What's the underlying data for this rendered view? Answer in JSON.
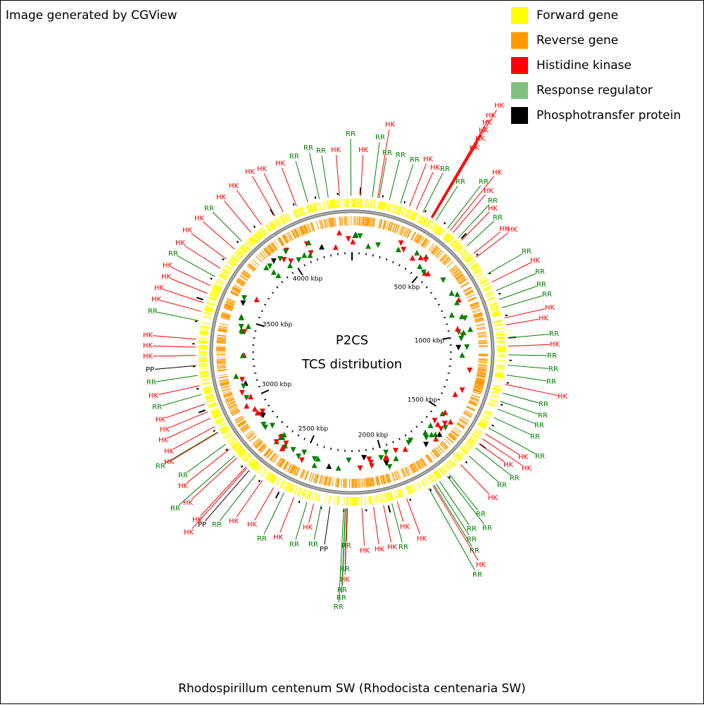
{
  "header": {
    "title": "Image generated by CGView"
  },
  "legend": [
    {
      "label": "Forward gene",
      "color": "#ffff00"
    },
    {
      "label": "Reverse gene",
      "color": "#ff9900"
    },
    {
      "label": "Histidine kinase",
      "color": "#ff0000"
    },
    {
      "label": "Response regulator",
      "color": "#80c080"
    },
    {
      "label": "Phosphotransfer protein",
      "color": "#000000"
    }
  ],
  "center": {
    "title": "P2CS",
    "subtitle": "TCS distribution"
  },
  "ruler": [
    "500 kbp",
    "1000 kbp",
    "1500 kbp",
    "2000 kbp",
    "2500 kbp",
    "3000 kbp",
    "3500 kbp",
    "4000 kbp"
  ],
  "features": [
    {
      "label": "RR",
      "color": "#008000"
    },
    {
      "label": "HK",
      "color": "#ff0000"
    },
    {
      "label": "RR",
      "color": "#008000"
    },
    {
      "label": "RR",
      "color": "#008000"
    },
    {
      "label": "HK",
      "color": "#ff0000"
    },
    {
      "label": "RR",
      "color": "#008000"
    },
    {
      "label": "RR",
      "color": "#008000"
    },
    {
      "label": "HK",
      "color": "#ff0000"
    },
    {
      "label": "HK",
      "color": "#ff0000"
    },
    {
      "label": "HK",
      "color": "#ff0000"
    },
    {
      "label": "HK",
      "color": "#ff0000"
    },
    {
      "label": "HK",
      "color": "#ff0000"
    },
    {
      "label": "HK",
      "color": "#ff0000"
    },
    {
      "label": "HK",
      "color": "#ff0000"
    },
    {
      "label": "HK",
      "color": "#ff0000"
    },
    {
      "label": "RR",
      "color": "#008000"
    },
    {
      "label": "RR",
      "color": "#008000"
    },
    {
      "label": "HK",
      "color": "#ff0000"
    },
    {
      "label": "RR",
      "color": "#008000"
    },
    {
      "label": "HK",
      "color": "#ff0000"
    },
    {
      "label": "RR",
      "color": "#008000"
    },
    {
      "label": "HK",
      "color": "#ff0000"
    },
    {
      "label": "RR",
      "color": "#008000"
    },
    {
      "label": "HK",
      "color": "#ff0000"
    },
    {
      "label": "HK",
      "color": "#ff0000"
    },
    {
      "label": "RR",
      "color": "#008000"
    },
    {
      "label": "HK",
      "color": "#ff0000"
    },
    {
      "label": "RR",
      "color": "#008000"
    },
    {
      "label": "RR",
      "color": "#008000"
    },
    {
      "label": "RR",
      "color": "#008000"
    },
    {
      "label": "HK",
      "color": "#ff0000"
    },
    {
      "label": "HK",
      "color": "#ff0000"
    },
    {
      "label": "RR",
      "color": "#008000"
    },
    {
      "label": "HK",
      "color": "#ff0000"
    },
    {
      "label": "RR",
      "color": "#008000"
    },
    {
      "label": "RR",
      "color": "#008000"
    },
    {
      "label": "RR",
      "color": "#008000"
    },
    {
      "label": "HK",
      "color": "#ff0000"
    },
    {
      "label": "RR",
      "color": "#008000"
    },
    {
      "label": "RR",
      "color": "#008000"
    },
    {
      "label": "RR",
      "color": "#008000"
    },
    {
      "label": "RR",
      "color": "#008000"
    },
    {
      "label": "HK",
      "color": "#ff0000"
    },
    {
      "label": "RR",
      "color": "#008000"
    },
    {
      "label": "HK",
      "color": "#ff0000"
    },
    {
      "label": "HK",
      "color": "#ff0000"
    },
    {
      "label": "RR",
      "color": "#008000"
    },
    {
      "label": "RR",
      "color": "#008000"
    },
    {
      "label": "HK",
      "color": "#ff0000"
    },
    {
      "label": "RR",
      "color": "#008000"
    },
    {
      "label": "RR",
      "color": "#008000"
    },
    {
      "label": "RR",
      "color": "#008000"
    },
    {
      "label": "RR",
      "color": "#008000"
    },
    {
      "label": "RR",
      "color": "#008000"
    },
    {
      "label": "HK",
      "color": "#ff0000"
    },
    {
      "label": "RR",
      "color": "#008000"
    },
    {
      "label": "HK",
      "color": "#ff0000"
    },
    {
      "label": "RR",
      "color": "#008000"
    },
    {
      "label": "HK",
      "color": "#ff0000"
    },
    {
      "label": "HK",
      "color": "#ff0000"
    },
    {
      "label": "HK",
      "color": "#ff0000"
    },
    {
      "label": "HK",
      "color": "#ff0000"
    },
    {
      "label": "RR",
      "color": "#008000"
    },
    {
      "label": "RR",
      "color": "#008000"
    },
    {
      "label": "HK",
      "color": "#ff0000"
    },
    {
      "label": "RR",
      "color": "#008000"
    },
    {
      "label": "RR",
      "color": "#008000"
    },
    {
      "label": "RR",
      "color": "#008000"
    },
    {
      "label": "PP",
      "color": "#000000"
    },
    {
      "label": "RR",
      "color": "#008000"
    },
    {
      "label": "RR",
      "color": "#008000"
    },
    {
      "label": "HK",
      "color": "#ff0000"
    },
    {
      "label": "HK",
      "color": "#ff0000"
    },
    {
      "label": "RR",
      "color": "#008000"
    },
    {
      "label": "HK",
      "color": "#ff0000"
    },
    {
      "label": "HK",
      "color": "#ff0000"
    },
    {
      "label": "RR",
      "color": "#008000"
    },
    {
      "label": "PP",
      "color": "#000000"
    },
    {
      "label": "HK",
      "color": "#ff0000"
    },
    {
      "label": "HK",
      "color": "#ff0000"
    },
    {
      "label": "RR",
      "color": "#008000"
    },
    {
      "label": "HK",
      "color": "#ff0000"
    },
    {
      "label": "HK",
      "color": "#ff0000"
    },
    {
      "label": "RR",
      "color": "#008000"
    },
    {
      "label": "RR",
      "color": "#008000"
    },
    {
      "label": "HK",
      "color": "#ff0000"
    },
    {
      "label": "HK",
      "color": "#ff0000"
    },
    {
      "label": "HK",
      "color": "#ff0000"
    },
    {
      "label": "HK",
      "color": "#ff0000"
    },
    {
      "label": "HK",
      "color": "#ff0000"
    },
    {
      "label": "RR",
      "color": "#008000"
    },
    {
      "label": "HK",
      "color": "#ff0000"
    },
    {
      "label": "RR",
      "color": "#008000"
    },
    {
      "label": "PP",
      "color": "#000000"
    },
    {
      "label": "HK",
      "color": "#ff0000"
    },
    {
      "label": "HK",
      "color": "#ff0000"
    },
    {
      "label": "HK",
      "color": "#ff0000"
    },
    {
      "label": "RR",
      "color": "#008000"
    },
    {
      "label": "HK",
      "color": "#ff0000"
    },
    {
      "label": "HK",
      "color": "#ff0000"
    },
    {
      "label": "HK",
      "color": "#ff0000"
    },
    {
      "label": "HK",
      "color": "#ff0000"
    },
    {
      "label": "RR",
      "color": "#008000"
    },
    {
      "label": "HK",
      "color": "#ff0000"
    },
    {
      "label": "HK",
      "color": "#ff0000"
    },
    {
      "label": "HK",
      "color": "#ff0000"
    },
    {
      "label": "RR",
      "color": "#008000"
    },
    {
      "label": "HK",
      "color": "#ff0000"
    },
    {
      "label": "HK",
      "color": "#ff0000"
    },
    {
      "label": "HK",
      "color": "#ff0000"
    },
    {
      "label": "HK",
      "color": "#ff0000"
    },
    {
      "label": "HK",
      "color": "#ff0000"
    },
    {
      "label": "RR",
      "color": "#008000"
    },
    {
      "label": "RR",
      "color": "#008000"
    },
    {
      "label": "RR",
      "color": "#008000"
    },
    {
      "label": "HK",
      "color": "#ff0000"
    }
  ],
  "footer": {
    "caption": "Rhodospirillum centenum SW (Rhodocista centenaria SW)"
  }
}
